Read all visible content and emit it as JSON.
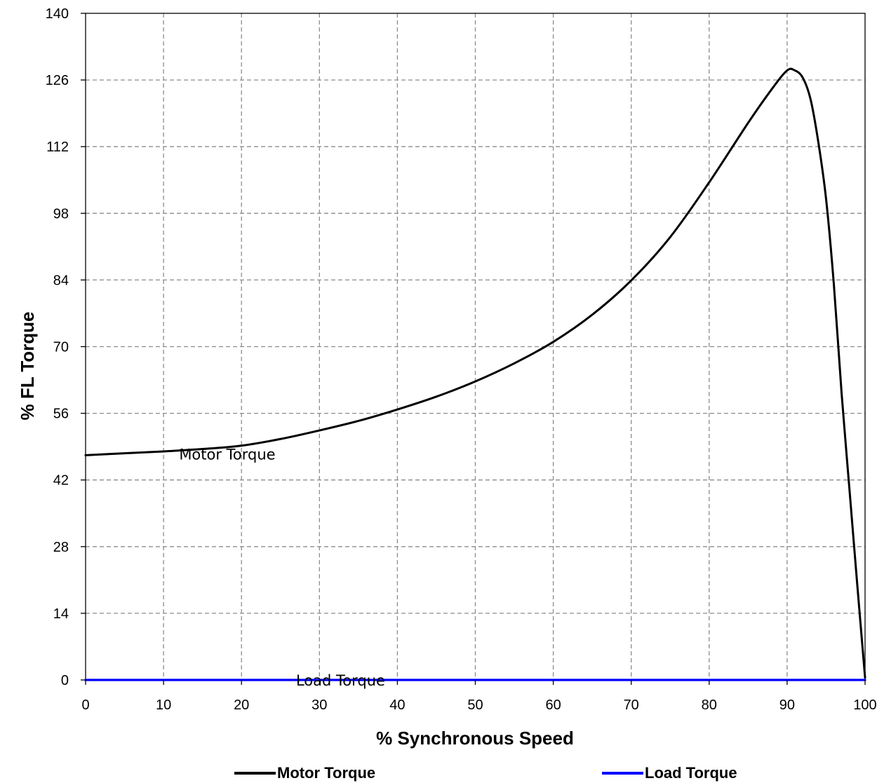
{
  "chart_data": {
    "type": "line",
    "xlabel": "% Synchronous Speed",
    "ylabel": "% FL Torque",
    "xlim": [
      0,
      100
    ],
    "ylim": [
      0,
      140
    ],
    "x_ticks": [
      "0",
      "10",
      "20",
      "30",
      "40",
      "50",
      "60",
      "70",
      "80",
      "90",
      "100"
    ],
    "y_ticks": [
      "0",
      "14",
      "28",
      "42",
      "56",
      "70",
      "84",
      "98",
      "112",
      "126",
      "140"
    ],
    "grid": true,
    "legend_position": "bottom",
    "series": [
      {
        "name": "Motor Torque",
        "color": "#000000",
        "x": [
          0,
          5,
          10,
          15,
          20,
          25,
          30,
          35,
          40,
          45,
          50,
          55,
          60,
          65,
          70,
          75,
          80,
          85,
          88,
          90,
          91,
          92,
          93,
          94,
          95,
          96,
          97,
          98,
          99,
          100
        ],
        "y": [
          47.2,
          47.6,
          48.0,
          48.5,
          49.2,
          50.6,
          52.4,
          54.4,
          56.8,
          59.5,
          62.7,
          66.5,
          71.0,
          76.7,
          83.9,
          93.0,
          104.5,
          117.0,
          124.0,
          128.0,
          128.0,
          126.5,
          122.0,
          113.0,
          101.0,
          83.0,
          60.0,
          40.0,
          20.0,
          0.5
        ]
      },
      {
        "name": "Load Torque",
        "color": "#0000ff",
        "x": [
          0,
          100
        ],
        "y": [
          0,
          0
        ]
      }
    ],
    "annotations": [
      {
        "text": "Motor Torque",
        "x": 12,
        "y": 47.5
      },
      {
        "text": "Load Torque",
        "x": 27,
        "y": 0
      }
    ]
  }
}
